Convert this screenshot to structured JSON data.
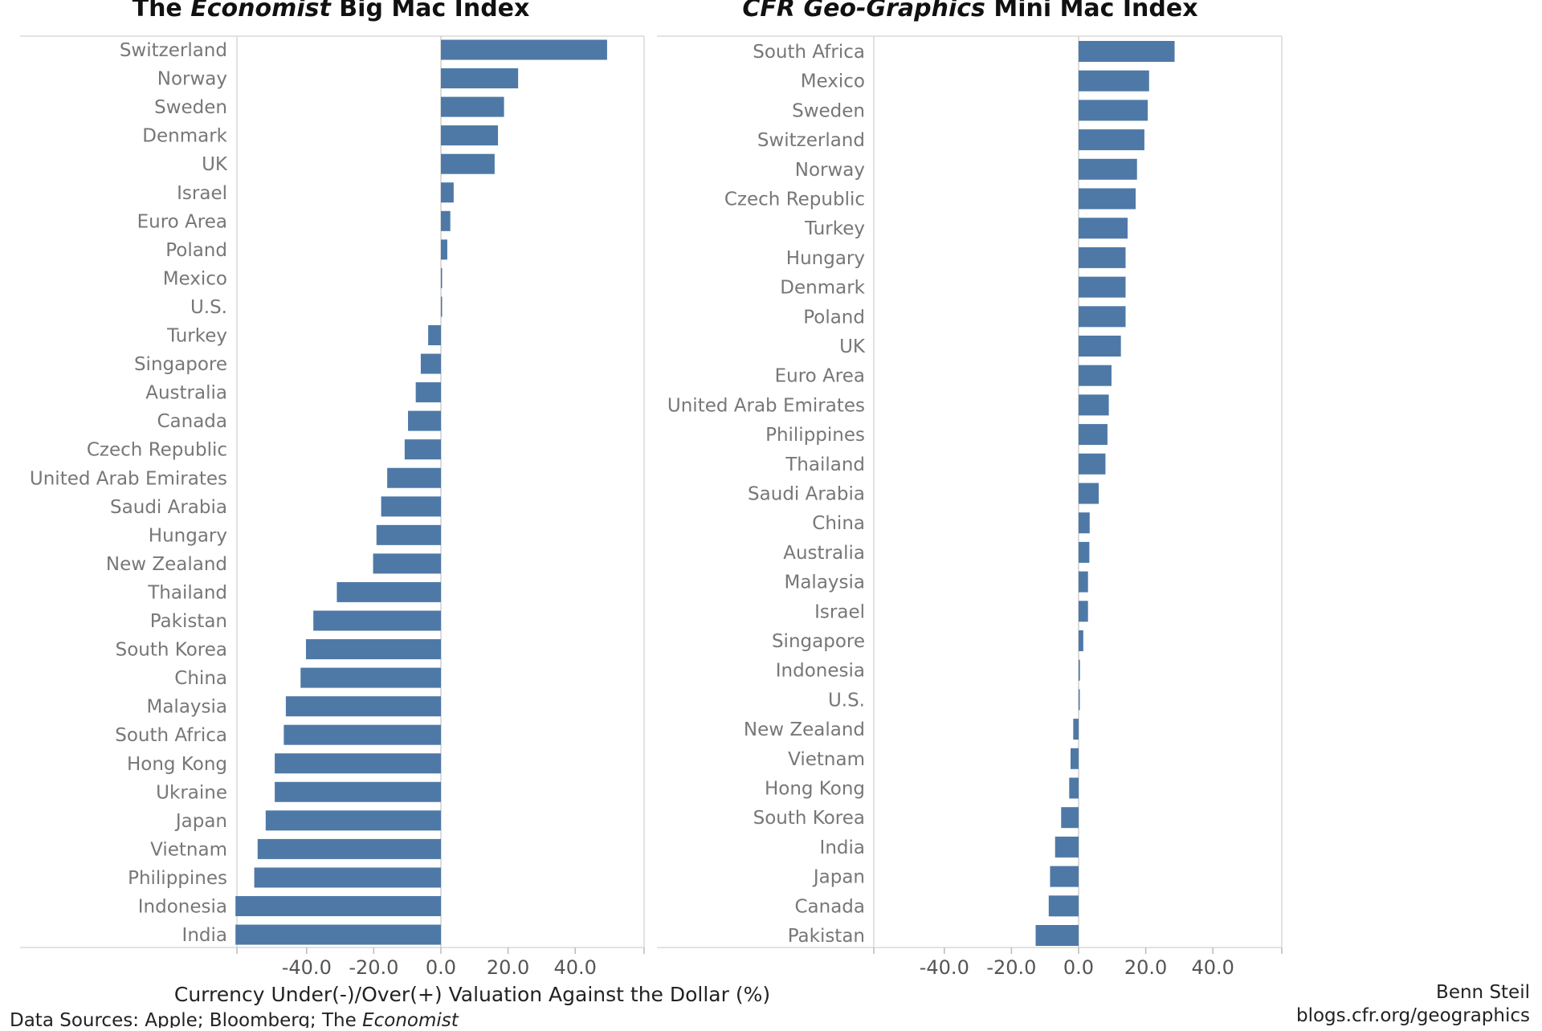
{
  "footer": {
    "source_prefix": "Data Sources: Apple; Bloomberg; The ",
    "source_italic": "Economist",
    "author": "Benn Steil",
    "site": "blogs.cfr.org/geographics"
  },
  "colors": {
    "bar": "#4e79a7"
  },
  "chart_data": [
    {
      "type": "bar",
      "orientation": "horizontal",
      "title_parts": [
        {
          "text": "The ",
          "italic": false
        },
        {
          "text": "Economist",
          "italic": true
        },
        {
          "text": " Big Mac Index",
          "italic": false
        }
      ],
      "xlabel": "Currency Under(-)/Over(+) Valuation Against the Dollar (%)",
      "xticks": [
        "-40.0",
        "-20.0",
        "0.0",
        "20.0",
        "40.0"
      ],
      "xlim": [
        -62,
        62
      ],
      "categories": [
        "Switzerland",
        "Norway",
        "Sweden",
        "Denmark",
        "UK",
        "Israel",
        "Euro Area",
        "Poland",
        "Mexico",
        "U.S.",
        "Turkey",
        "Singapore",
        "Australia",
        "Canada",
        "Czech Republic",
        "United Arab Emirates",
        "Saudi Arabia",
        "Hungary",
        "New Zealand",
        "Thailand",
        "Pakistan",
        "South Korea",
        "China",
        "Malaysia",
        "South Africa",
        "Hong Kong",
        "Ukraine",
        "Japan",
        "Vietnam",
        "Philippines",
        "Indonesia",
        "India"
      ],
      "values": [
        49.5,
        23.0,
        18.8,
        17.0,
        16.0,
        3.8,
        2.8,
        1.9,
        0.3,
        0.0,
        -3.8,
        -6.0,
        -7.5,
        -9.8,
        -10.8,
        -16.0,
        -17.8,
        -19.2,
        -20.2,
        -31.0,
        -38.0,
        -40.2,
        -41.8,
        -46.2,
        -46.8,
        -49.5,
        -49.5,
        -52.2,
        -54.6,
        -55.6,
        -61.2,
        -61.2
      ]
    },
    {
      "type": "bar",
      "orientation": "horizontal",
      "title_parts": [
        {
          "text": "CFR Geo-Graphics",
          "italic": true
        },
        {
          "text": " Mini Mac Index",
          "italic": false
        }
      ],
      "xticks": [
        "-40.0",
        "-20.0",
        "0.0",
        "20.0",
        "40.0"
      ],
      "xlim": [
        -62,
        62
      ],
      "categories": [
        "South Africa",
        "Mexico",
        "Sweden",
        "Switzerland",
        "Norway",
        "Czech Republic",
        "Turkey",
        "Hungary",
        "Denmark",
        "Poland",
        "UK",
        "Euro Area",
        "United Arab Emirates",
        "Philippines",
        "Thailand",
        "Saudi Arabia",
        "China",
        "Australia",
        "Malaysia",
        "Israel",
        "Singapore",
        "Indonesia",
        "U.S.",
        "New Zealand",
        "Vietnam",
        "Hong Kong",
        "South Korea",
        "India",
        "Japan",
        "Canada",
        "Pakistan"
      ],
      "values": [
        28.6,
        21.0,
        20.6,
        19.6,
        17.4,
        17.0,
        14.6,
        14.0,
        14.0,
        14.0,
        12.6,
        9.8,
        9.0,
        8.6,
        8.0,
        6.0,
        3.3,
        3.2,
        2.8,
        2.8,
        1.4,
        0.4,
        0.0,
        -1.6,
        -2.4,
        -2.8,
        -5.2,
        -7.0,
        -8.5,
        -8.9,
        -12.8
      ]
    }
  ]
}
